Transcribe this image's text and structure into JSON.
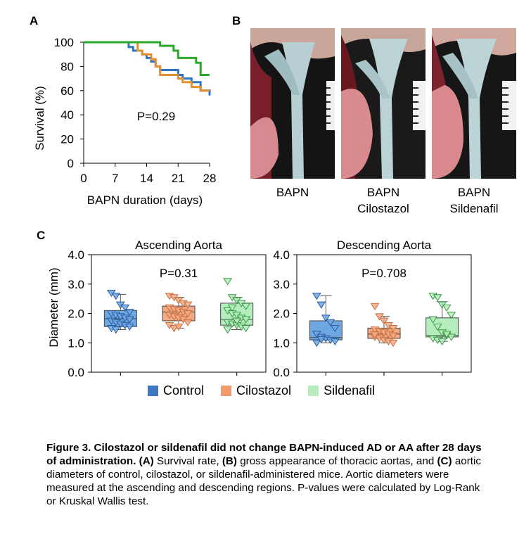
{
  "panels": {
    "a": "A",
    "b": "B",
    "c": "C"
  },
  "panel_a": {
    "ylabel": "Survival (%)",
    "xlabel": "BAPN duration (days)",
    "pvalue": "P=0.29"
  },
  "panel_b": {
    "labels": [
      {
        "line1": "BAPN",
        "line2": ""
      },
      {
        "line1": "BAPN",
        "line2": "Cilostazol"
      },
      {
        "line1": "BAPN",
        "line2": "Sildenafil"
      }
    ]
  },
  "panel_c": {
    "ylabel": "Diameter (mm)",
    "ascending_title": "Ascending Aorta",
    "descending_title": "Descending Aorta",
    "ascending_p": "P=0.31",
    "descending_p": "P=0.708"
  },
  "legend": {
    "control": "Control",
    "cilostazol": "Cilostazol",
    "sildenafil": "Sildenafil"
  },
  "colors": {
    "control_line": "#2e75c7",
    "cilostazol_line": "#e38f2c",
    "sildenafil_line": "#2aa82a",
    "control_fill": "#6fa7e3",
    "cilostazol_fill": "#f4aa85",
    "sildenafil_fill": "#b6edbe",
    "control_swatch": "#3f77c2",
    "cilostazol_swatch": "#f09a6e",
    "sildenafil_swatch": "#b8ecbf"
  },
  "caption": {
    "title": "Figure 3. Cilostazol or sildenafil did not change BAPN-induced AD or AA after 28 days of administration.",
    "part_a_label": "(A)",
    "part_a_text": "Survival rate,",
    "part_b_label": "(B)",
    "part_b_text": "gross appearance of thoracic aortas, and",
    "part_c_label": "(C)",
    "part_c_text": "aortic diameters of control, cilostazol, or sildenafil-administered mice. Aortic diameters were measured at the ascending and descending regions. P-values were calculated by Log-Rank or Kruskal Wallis test."
  },
  "chart_data": [
    {
      "type": "line",
      "title": "",
      "xlabel": "BAPN duration (days)",
      "ylabel": "Survival (%)",
      "xlim": [
        0,
        28
      ],
      "ylim": [
        0,
        100
      ],
      "xticks": [
        0,
        7,
        14,
        21,
        28
      ],
      "yticks": [
        0,
        20,
        40,
        60,
        80,
        100
      ],
      "annotation": "P=0.29",
      "step": true,
      "series": [
        {
          "key": "control",
          "x": [
            0,
            10,
            11,
            13,
            14,
            15,
            16,
            17,
            21,
            22,
            24,
            26,
            28
          ],
          "y": [
            100,
            96,
            93,
            90,
            87,
            84,
            80,
            77,
            73,
            70,
            67,
            60,
            56
          ]
        },
        {
          "key": "cilostazol",
          "x": [
            0,
            12,
            13,
            15,
            16,
            17,
            21,
            22,
            24,
            26,
            28
          ],
          "y": [
            100,
            93,
            90,
            86,
            80,
            73,
            70,
            67,
            63,
            60,
            60
          ]
        },
        {
          "key": "sildenafil",
          "x": [
            0,
            17,
            20,
            21,
            25,
            26,
            28
          ],
          "y": [
            100,
            97,
            93,
            87,
            83,
            73,
            73
          ]
        }
      ]
    },
    {
      "type": "box",
      "title": "Ascending Aorta",
      "ylabel": "Diameter (mm)",
      "ylim": [
        0,
        4
      ],
      "yticks": [
        0.0,
        1.0,
        2.0,
        3.0,
        4.0
      ],
      "annotation": "P=0.31",
      "groups": [
        {
          "key": "control",
          "q1": 1.55,
          "median": 1.82,
          "q3": 2.1,
          "whisker_low": 1.45,
          "whisker_high": 2.65,
          "points": [
            2.7,
            2.6,
            2.3,
            2.2,
            2.05,
            2.0,
            1.95,
            1.9,
            1.85,
            1.8,
            1.75,
            1.7,
            1.65,
            1.6,
            1.55,
            1.5,
            1.45
          ]
        },
        {
          "key": "cilostazol",
          "q1": 1.75,
          "median": 2.05,
          "q3": 2.25,
          "whisker_low": 1.5,
          "whisker_high": 2.55,
          "points": [
            2.6,
            2.55,
            2.45,
            2.35,
            2.3,
            2.2,
            2.15,
            2.1,
            2.05,
            2.0,
            1.95,
            1.9,
            1.85,
            1.8,
            1.7,
            1.6,
            1.5,
            1.55
          ]
        },
        {
          "key": "sildenafil",
          "q1": 1.6,
          "median": 1.8,
          "q3": 2.35,
          "whisker_low": 1.45,
          "whisker_high": 2.55,
          "points": [
            3.1,
            2.55,
            2.45,
            2.35,
            2.25,
            2.1,
            2.0,
            1.95,
            1.85,
            1.8,
            1.7,
            1.65,
            1.6,
            1.55,
            1.5,
            1.45,
            2.2,
            1.75
          ]
        }
      ]
    },
    {
      "type": "box",
      "title": "Descending Aorta",
      "ylabel": "",
      "ylim": [
        0,
        4
      ],
      "yticks": [
        0.0,
        1.0,
        2.0,
        3.0,
        4.0
      ],
      "annotation": "P=0.708",
      "groups": [
        {
          "key": "control",
          "q1": 1.1,
          "median": 1.18,
          "q3": 1.75,
          "whisker_low": 1.0,
          "whisker_high": 2.6,
          "points": [
            2.6,
            2.3,
            1.85,
            1.7,
            1.5,
            1.3,
            1.2,
            1.15,
            1.1,
            1.05,
            1.0,
            1.12
          ]
        },
        {
          "key": "cilostazol",
          "q1": 1.15,
          "median": 1.3,
          "q3": 1.5,
          "whisker_low": 1.0,
          "whisker_high": 1.9,
          "points": [
            2.25,
            1.9,
            1.75,
            1.6,
            1.5,
            1.45,
            1.4,
            1.35,
            1.3,
            1.25,
            1.2,
            1.15,
            1.1,
            1.05,
            1.0,
            1.28
          ]
        },
        {
          "key": "sildenafil",
          "q1": 1.2,
          "median": 1.25,
          "q3": 1.85,
          "whisker_low": 1.05,
          "whisker_high": 2.4,
          "points": [
            2.6,
            2.55,
            2.3,
            2.2,
            1.95,
            1.8,
            1.55,
            1.35,
            1.25,
            1.2,
            1.15,
            1.1,
            1.05,
            1.3
          ]
        }
      ]
    }
  ]
}
